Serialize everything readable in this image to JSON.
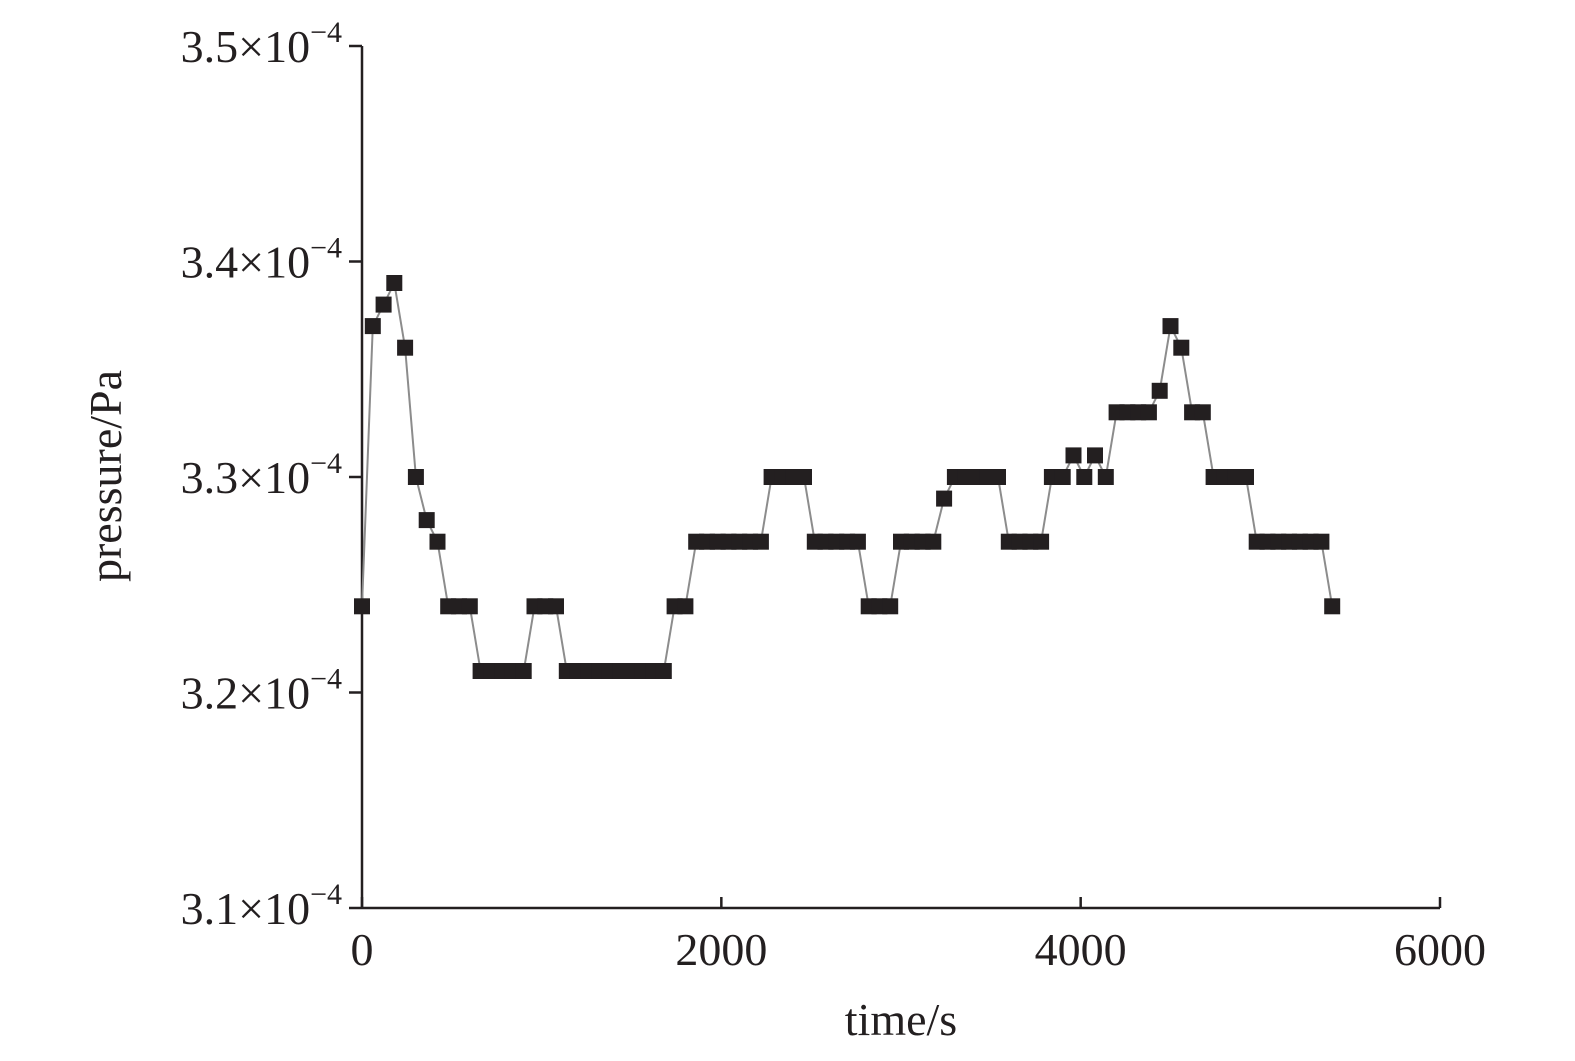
{
  "chart_data": {
    "type": "line",
    "title": "",
    "xlabel": "time/s",
    "ylabel": "pressure/Pa",
    "xlim": [
      0,
      6000
    ],
    "ylim": [
      0.00031,
      0.00035
    ],
    "x_ticks": [
      {
        "value": 0,
        "label": "0"
      },
      {
        "value": 2000,
        "label": "2000"
      },
      {
        "value": 4000,
        "label": "4000"
      },
      {
        "value": 6000,
        "label": "6000"
      }
    ],
    "y_ticks": [
      {
        "value": 0.00031,
        "mantissa": "3.1",
        "times": "×",
        "base": "10",
        "exponent": "−4"
      },
      {
        "value": 0.00032,
        "mantissa": "3.2",
        "times": "×",
        "base": "10",
        "exponent": "−4"
      },
      {
        "value": 0.00033,
        "mantissa": "3.3",
        "times": "×",
        "base": "10",
        "exponent": "−4"
      },
      {
        "value": 0.00034,
        "mantissa": "3.4",
        "times": "×",
        "base": "10",
        "exponent": "−4"
      },
      {
        "value": 0.00035,
        "mantissa": "3.5",
        "times": "×",
        "base": "10",
        "exponent": "−4"
      }
    ],
    "grid": false,
    "legend": "none",
    "colors": {
      "line": "#8c8c8c",
      "marker": "#231f20",
      "axis": "#231f20"
    },
    "series": [
      {
        "marker": "square",
        "x": [
          0,
          60,
          120,
          180,
          240,
          300,
          360,
          420,
          480,
          540,
          600,
          660,
          720,
          780,
          840,
          900,
          960,
          1020,
          1080,
          1140,
          1200,
          1260,
          1320,
          1380,
          1440,
          1500,
          1560,
          1620,
          1680,
          1740,
          1800,
          1860,
          1920,
          1980,
          2040,
          2100,
          2160,
          2220,
          2280,
          2340,
          2400,
          2460,
          2520,
          2580,
          2640,
          2700,
          2760,
          2820,
          2880,
          2940,
          3000,
          3060,
          3120,
          3180,
          3240,
          3300,
          3360,
          3420,
          3480,
          3540,
          3600,
          3660,
          3720,
          3780,
          3840,
          3900,
          3960,
          4020,
          4080,
          4140,
          4200,
          4260,
          4320,
          4380,
          4440,
          4500,
          4560,
          4620,
          4680,
          4740,
          4800,
          4860,
          4920,
          4980,
          5040,
          5100,
          5160,
          5220,
          5280,
          5340,
          5400
        ],
        "y": [
          0.000324,
          0.000337,
          0.000338,
          0.000339,
          0.000336,
          0.00033,
          0.000328,
          0.000327,
          0.000324,
          0.000324,
          0.000324,
          0.000321,
          0.000321,
          0.000321,
          0.000321,
          0.000321,
          0.000324,
          0.000324,
          0.000324,
          0.000321,
          0.000321,
          0.000321,
          0.000321,
          0.000321,
          0.000321,
          0.000321,
          0.000321,
          0.000321,
          0.000321,
          0.000324,
          0.000324,
          0.000327,
          0.000327,
          0.000327,
          0.000327,
          0.000327,
          0.000327,
          0.000327,
          0.00033,
          0.00033,
          0.00033,
          0.00033,
          0.000327,
          0.000327,
          0.000327,
          0.000327,
          0.000327,
          0.000324,
          0.000324,
          0.000324,
          0.000327,
          0.000327,
          0.000327,
          0.000327,
          0.000329,
          0.00033,
          0.00033,
          0.00033,
          0.00033,
          0.00033,
          0.000327,
          0.000327,
          0.000327,
          0.000327,
          0.00033,
          0.00033,
          0.000331,
          0.00033,
          0.000331,
          0.00033,
          0.000333,
          0.000333,
          0.000333,
          0.000333,
          0.000334,
          0.000337,
          0.000336,
          0.000333,
          0.000333,
          0.00033,
          0.00033,
          0.00033,
          0.00033,
          0.000327,
          0.000327,
          0.000327,
          0.000327,
          0.000327,
          0.000327,
          0.000327,
          0.000324
        ]
      }
    ]
  }
}
